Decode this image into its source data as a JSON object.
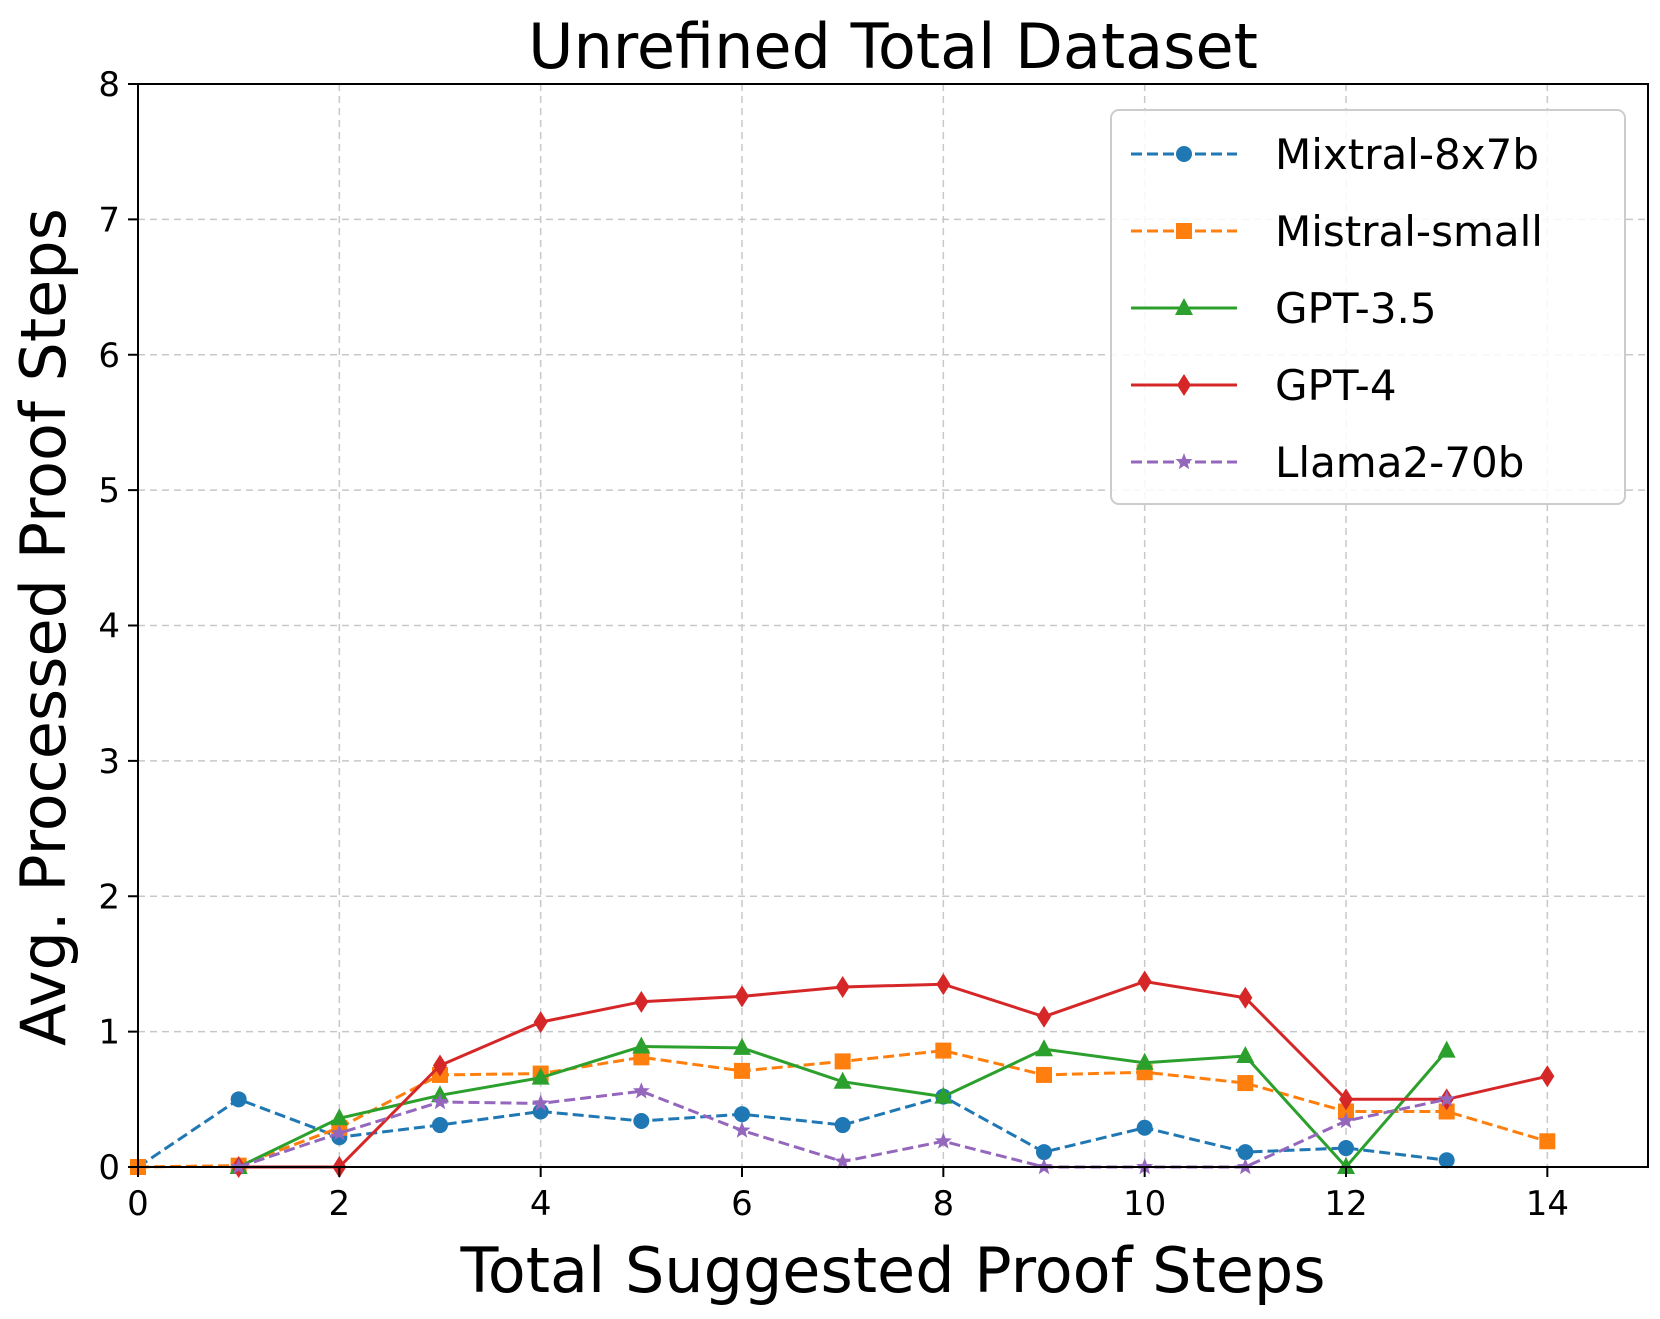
{
  "chart_data": {
    "type": "line",
    "title": "Unrefined Total Dataset",
    "xlabel": "Total Suggested Proof Steps",
    "ylabel": "Avg. Processed Proof Steps",
    "xlim": [
      0,
      15
    ],
    "ylim": [
      0,
      8
    ],
    "xticks": [
      0,
      2,
      4,
      6,
      8,
      10,
      12,
      14
    ],
    "yticks": [
      0,
      1,
      2,
      3,
      4,
      5,
      6,
      7,
      8
    ],
    "xtick_labels": [
      "0",
      "2",
      "4",
      "6",
      "8",
      "10",
      "12",
      "14"
    ],
    "ytick_labels": [
      "0",
      "1",
      "2",
      "3",
      "4",
      "5",
      "6",
      "7",
      "8"
    ],
    "grid": true,
    "legend_position": "upper right",
    "series": [
      {
        "name": "Mixtral-8x7b",
        "color": "#1f77b4",
        "linestyle": "dashed",
        "marker": "circle",
        "x": [
          0,
          1,
          2,
          3,
          4,
          5,
          6,
          7,
          8,
          9,
          10,
          11,
          12,
          13
        ],
        "y": [
          0.0,
          0.5,
          0.22,
          0.31,
          0.41,
          0.34,
          0.39,
          0.31,
          0.52,
          0.11,
          0.29,
          0.11,
          0.14,
          0.05
        ]
      },
      {
        "name": "Mistral-small",
        "color": "#ff7f0e",
        "linestyle": "dashed",
        "marker": "square",
        "x": [
          0,
          1,
          2,
          3,
          4,
          5,
          6,
          7,
          8,
          9,
          10,
          11,
          12,
          13,
          14
        ],
        "y": [
          0.0,
          0.01,
          0.29,
          0.68,
          0.69,
          0.81,
          0.71,
          0.78,
          0.86,
          0.68,
          0.7,
          0.62,
          0.41,
          0.41,
          0.19
        ]
      },
      {
        "name": "GPT-3.5",
        "color": "#2ca02c",
        "linestyle": "solid",
        "marker": "triangle",
        "x": [
          1,
          2,
          3,
          4,
          5,
          6,
          7,
          8,
          9,
          10,
          11,
          12,
          13
        ],
        "y": [
          0.0,
          0.36,
          0.53,
          0.66,
          0.89,
          0.88,
          0.63,
          0.52,
          0.87,
          0.77,
          0.82,
          0.0,
          0.86
        ]
      },
      {
        "name": "GPT-4",
        "color": "#d62728",
        "linestyle": "solid",
        "marker": "diamond",
        "x": [
          1,
          2,
          3,
          4,
          5,
          6,
          7,
          8,
          9,
          10,
          11,
          12,
          13,
          14
        ],
        "y": [
          0.0,
          0.0,
          0.75,
          1.07,
          1.22,
          1.26,
          1.33,
          1.35,
          1.11,
          1.37,
          1.25,
          0.5,
          0.5,
          0.67
        ]
      },
      {
        "name": "Llama2-70b",
        "color": "#9467bd",
        "linestyle": "dashed",
        "marker": "star",
        "x": [
          1,
          2,
          3,
          4,
          5,
          6,
          7,
          8,
          9,
          10,
          11,
          12,
          13
        ],
        "y": [
          0.0,
          0.25,
          0.48,
          0.47,
          0.56,
          0.27,
          0.04,
          0.19,
          0.0,
          0.0,
          0.0,
          0.34,
          0.5
        ]
      }
    ]
  }
}
